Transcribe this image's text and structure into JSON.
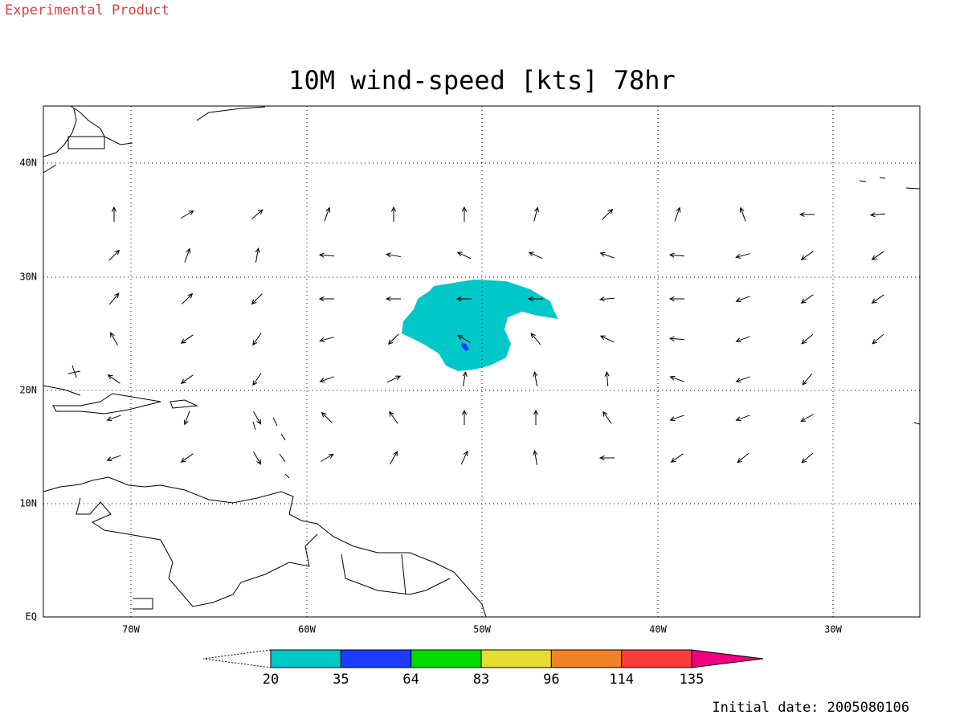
{
  "header": {
    "product": "Experimental Product"
  },
  "map": {
    "title": "10M wind-speed [kts] 78hr",
    "lat_labels": [
      "40N",
      "30N",
      "20N",
      "10N",
      "EQ"
    ],
    "lon_labels": [
      "70W",
      "60W",
      "50W",
      "40W",
      "30W"
    ]
  },
  "colorbar": {
    "levels": [
      "20",
      "35",
      "64",
      "83",
      "96",
      "114",
      "135"
    ],
    "colors": [
      "#00c8c8",
      "#1e3cff",
      "#00dc00",
      "#e6dc32",
      "#f08228",
      "#fa3c3c",
      "#f00082"
    ]
  },
  "footer": {
    "initial_date": "Initial date: 2005080106"
  }
}
